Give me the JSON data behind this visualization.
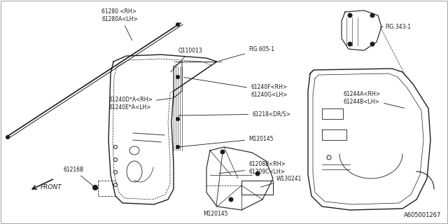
{
  "background_color": "#ffffff",
  "diagram_id": "A605001267",
  "line_color": "#1a1a1a",
  "text_color": "#1a1a1a",
  "font_size": 5.5,
  "labels": {
    "61280": "61280 <RH>\n61280A<LH>",
    "Q110013": "Q110013",
    "FIG605": "FIG.605-1",
    "61240DE": "61240D*A<RH>\n61240E*A<LH>",
    "61240FG": "61240F<RH>\n61240G<LH>",
    "61218": "61218<DR/S>",
    "M120145a": "M120145",
    "61216B": "61216B",
    "61208BC": "61208B<RH>\n61209C<LH>",
    "W130241": "W130241",
    "M120145b": "M120145",
    "FIG343": "FIG.343-1",
    "61244AB": "61244A<RH>\n61244B<LH>"
  }
}
